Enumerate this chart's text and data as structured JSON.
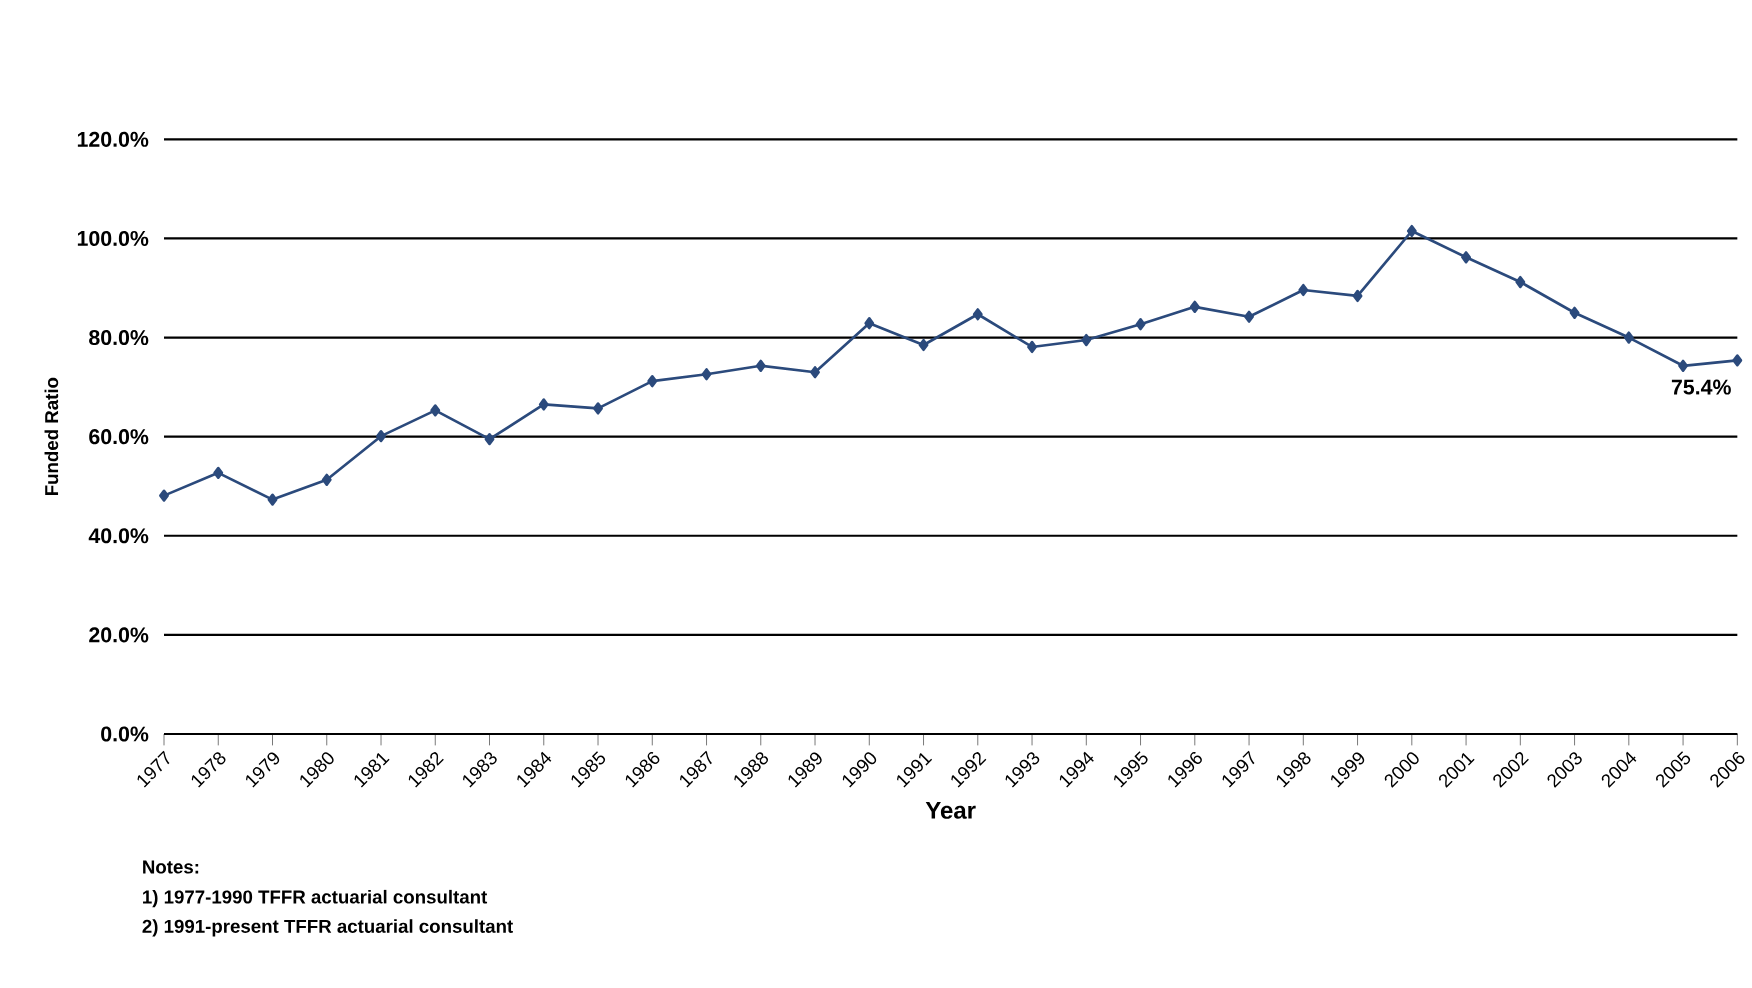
{
  "chart_data": {
    "type": "line",
    "xlabel": "Year",
    "ylabel": "Funded Ratio",
    "categories": [
      "1977",
      "1978",
      "1979",
      "1980",
      "1981",
      "1982",
      "1983",
      "1984",
      "1985",
      "1986",
      "1987",
      "1988",
      "1989",
      "1990",
      "1991",
      "1992",
      "1993",
      "1994",
      "1995",
      "1996",
      "1997",
      "1998",
      "1999",
      "2000",
      "2001",
      "2002",
      "2003",
      "2004",
      "2005",
      "2006"
    ],
    "series": [
      {
        "color": "#2b4a7c",
        "values": [
          48.1,
          52.7,
          47.3,
          51.3,
          60.1,
          65.3,
          59.5,
          66.5,
          65.7,
          71.2,
          72.6,
          74.3,
          73.0,
          82.9,
          78.5,
          84.7,
          78.1,
          79.5,
          82.7,
          86.2,
          84.2,
          89.6,
          88.4,
          101.5,
          96.2,
          91.2,
          85.0,
          80.0,
          74.3,
          75.4
        ],
        "value_labels": [
          null,
          null,
          null,
          null,
          null,
          null,
          null,
          null,
          null,
          null,
          null,
          null,
          null,
          null,
          null,
          null,
          null,
          null,
          null,
          null,
          null,
          null,
          null,
          null,
          null,
          null,
          null,
          null,
          null,
          "75.4%"
        ]
      }
    ],
    "ylim": [
      0,
      120
    ],
    "yticks": [
      {
        "value": 0,
        "label": "0.0%"
      },
      {
        "value": 20,
        "label": "20.0%"
      },
      {
        "value": 40,
        "label": "40.0%"
      },
      {
        "value": 60,
        "label": "60.0%"
      },
      {
        "value": 80,
        "label": "80.0%"
      },
      {
        "value": 100,
        "label": "100.0%"
      },
      {
        "value": 120,
        "label": "120.0%"
      }
    ],
    "grid": "y",
    "marker": "diamond",
    "line_style": "solid",
    "annotations": [
      "Notes:",
      "1) 1977-1990 TFFR actuarial consultant",
      "2) 1991-present TFFR actuarial consultant"
    ]
  }
}
